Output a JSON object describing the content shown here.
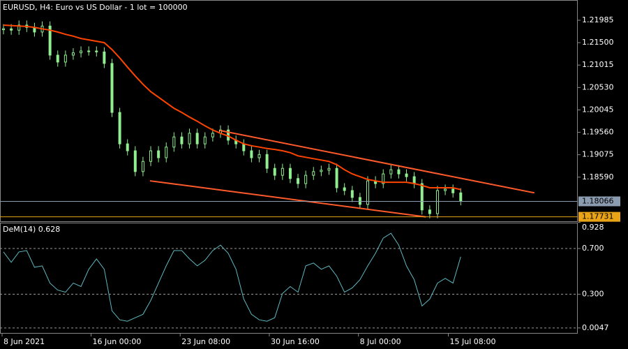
{
  "chart_data": [
    {
      "type": "candlestick",
      "title": "EURUSD, H4:  Euro vs US Dollar - 1 lot = 100000",
      "xlim": [
        -0.45,
        74.1
      ],
      "ylim": [
        1.17635,
        1.22408
      ],
      "yticks": [
        1.21985,
        {
          "value": 1.215,
          "label": "1.21500"
        },
        1.21015,
        {
          "value": 1.2053,
          "label": "1.20530"
        },
        1.20045,
        {
          "value": 1.1956,
          "label": "1.19560"
        },
        1.19075,
        {
          "value": 1.1859,
          "label": "1.18590"
        }
      ],
      "color": "#90ee90",
      "open": [
        1.2178,
        1.218,
        1.2177,
        1.2188,
        1.2183,
        1.2173,
        1.2186,
        1.2123,
        1.2108,
        1.2123,
        1.2128,
        1.2132,
        1.2132,
        1.213,
        1.2105,
        1.1999,
        1.1931,
        1.1916,
        1.1871,
        1.1893,
        1.1916,
        1.1901,
        1.1924,
        1.1946,
        1.1931,
        1.1954,
        1.1931,
        1.1946,
        1.1954,
        1.1961,
        1.1939,
        1.1931,
        1.1916,
        1.1901,
        1.1908,
        1.1878,
        1.1863,
        1.1878,
        1.1856,
        1.1845,
        1.1863,
        1.1871,
        1.1874,
        1.1878,
        1.1836,
        1.183,
        1.1815,
        1.18,
        1.1851,
        1.1845,
        1.1866,
        1.1875,
        1.1866,
        1.186,
        1.1845,
        1.1788,
        1.178,
        1.183,
        1.1833,
        1.1825
      ],
      "high": [
        1.219,
        1.219,
        1.2198,
        1.2198,
        1.2193,
        1.2196,
        1.2196,
        1.2133,
        1.2133,
        1.2138,
        1.2142,
        1.2142,
        1.2142,
        1.214,
        1.2115,
        1.2009,
        1.1941,
        1.1926,
        1.1903,
        1.1926,
        1.1926,
        1.1934,
        1.1956,
        1.1956,
        1.1964,
        1.1964,
        1.1956,
        1.1964,
        1.1971,
        1.1971,
        1.1949,
        1.1941,
        1.1926,
        1.1918,
        1.1918,
        1.1888,
        1.1888,
        1.1888,
        1.1866,
        1.1873,
        1.1881,
        1.1884,
        1.1888,
        1.1888,
        1.1846,
        1.184,
        1.1825,
        1.1861,
        1.1861,
        1.1876,
        1.1885,
        1.1885,
        1.1876,
        1.187,
        1.1855,
        1.1798,
        1.184,
        1.1843,
        1.1843,
        1.1835
      ],
      "low": [
        1.2168,
        1.2167,
        1.2167,
        1.2173,
        1.2163,
        1.2163,
        1.2113,
        1.2098,
        1.2098,
        1.2113,
        1.2118,
        1.2122,
        1.212,
        1.2095,
        1.1989,
        1.1921,
        1.1906,
        1.1861,
        1.1861,
        1.1883,
        1.1891,
        1.1891,
        1.1914,
        1.1921,
        1.1921,
        1.1921,
        1.1921,
        1.1936,
        1.1944,
        1.1929,
        1.1921,
        1.1906,
        1.1891,
        1.1891,
        1.1868,
        1.1853,
        1.1853,
        1.1846,
        1.1835,
        1.1835,
        1.1853,
        1.1861,
        1.1864,
        1.1826,
        1.182,
        1.1805,
        1.179,
        1.179,
        1.1835,
        1.1835,
        1.1856,
        1.1856,
        1.185,
        1.1835,
        1.1778,
        1.177,
        1.177,
        1.182,
        1.1815,
        1.1798
      ],
      "close": [
        1.218,
        1.2177,
        1.2188,
        1.2183,
        1.2173,
        1.2186,
        1.2123,
        1.2108,
        1.2123,
        1.2128,
        1.2132,
        1.2132,
        1.213,
        1.2105,
        1.1999,
        1.1931,
        1.1916,
        1.1871,
        1.1893,
        1.1916,
        1.1901,
        1.1924,
        1.1946,
        1.1931,
        1.1954,
        1.1931,
        1.1946,
        1.1954,
        1.1961,
        1.1939,
        1.1931,
        1.1916,
        1.1901,
        1.1908,
        1.1878,
        1.1863,
        1.1878,
        1.1856,
        1.1845,
        1.1863,
        1.1871,
        1.1874,
        1.1878,
        1.1836,
        1.183,
        1.1815,
        1.18,
        1.1851,
        1.1845,
        1.1866,
        1.1875,
        1.1866,
        1.186,
        1.1845,
        1.1788,
        1.178,
        1.183,
        1.1833,
        1.1825,
        1.1808
      ],
      "ma": {
        "color": "#ff4500",
        "values": [
          1.2188,
          1.2187,
          1.2186,
          1.2185,
          1.2183,
          1.218,
          1.2177,
          1.2173,
          1.2168,
          1.2164,
          1.2159,
          1.2156,
          1.2153,
          1.215,
          1.2135,
          1.2117,
          1.2097,
          1.2078,
          1.206,
          1.2044,
          1.2032,
          1.202,
          1.2008,
          1.1999,
          1.1989,
          1.198,
          1.197,
          1.1961,
          1.1954,
          1.1948,
          1.1939,
          1.1931,
          1.1927,
          1.1924,
          1.1921,
          1.1919,
          1.1916,
          1.1912,
          1.1905,
          1.1902,
          1.1899,
          1.1896,
          1.1893,
          1.1886,
          1.1875,
          1.1866,
          1.186,
          1.1854,
          1.1851,
          1.1848,
          1.1848,
          1.1848,
          1.1848,
          1.1845,
          1.1841,
          1.1836,
          1.1836,
          1.1836,
          1.1836,
          1.1832
        ]
      },
      "trendlines": [
        {
          "color": "#ff5a2a",
          "x": [
            27.9,
            68.5
          ],
          "y": [
            1.196,
            1.1825
          ]
        },
        {
          "color": "#ff5a2a",
          "x": [
            18.9,
            54.5
          ],
          "y": [
            1.1851,
            1.1773
          ]
        }
      ],
      "price_lines": [
        {
          "value": 1.18066,
          "color": "#8c9cb0"
        },
        {
          "value": 1.17731,
          "color": "#e8a317"
        }
      ]
    },
    {
      "type": "line",
      "title": "DeM(14) 0.628",
      "xlim": [
        -0.45,
        74.1
      ],
      "ylim": [
        -0.045,
        0.92
      ],
      "yticks": [
        0.928,
        {
          "value": 0.7,
          "label": "0.700"
        },
        {
          "value": 0.3,
          "label": "0.300"
        },
        0.0047
      ],
      "levels": [
        0.7,
        0.3,
        0.0047
      ],
      "xticks": [
        {
          "value": -0.18,
          "label": "8 Jun 2021"
        },
        {
          "value": 11.3,
          "label": "16 Jun 00:00"
        },
        {
          "value": 22.8,
          "label": "23 Jun 08:00"
        },
        {
          "value": 34.3,
          "label": "30 Jun 16:00"
        },
        {
          "value": 45.8,
          "label": "8 Jul 00:00"
        },
        {
          "value": 57.4,
          "label": "15 Jul 08:00"
        }
      ],
      "color": "#5fb8c0",
      "values": [
        0.67,
        0.579,
        0.67,
        0.682,
        0.536,
        0.548,
        0.397,
        0.336,
        0.318,
        0.397,
        0.367,
        0.518,
        0.609,
        0.518,
        0.155,
        0.076,
        0.064,
        0.094,
        0.124,
        0.245,
        0.397,
        0.548,
        0.682,
        0.682,
        0.609,
        0.548,
        0.597,
        0.682,
        0.73,
        0.658,
        0.518,
        0.258,
        0.124,
        0.076,
        0.064,
        0.094,
        0.306,
        0.367,
        0.318,
        0.548,
        0.573,
        0.518,
        0.548,
        0.458,
        0.318,
        0.355,
        0.427,
        0.548,
        0.658,
        0.791,
        0.833,
        0.73,
        0.548,
        0.427,
        0.197,
        0.258,
        0.397,
        0.439,
        0.397,
        0.628
      ]
    }
  ]
}
